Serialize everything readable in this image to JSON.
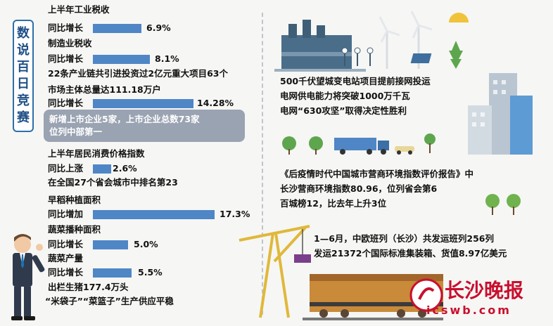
{
  "title": "数说百日竞赛",
  "left": {
    "industrial_tax": {
      "label": "上半年工业税收",
      "growth_label": "同比增长",
      "value": "6.9%",
      "fill": 0.399
    },
    "manufacturing_tax": {
      "label": "制造业税收",
      "growth_label": "同比增长",
      "value": "8.1%",
      "fill": 0.468
    },
    "industry_chain": "22条产业链共引进投资过2亿元重大项目63个",
    "market_entities": {
      "label": "市场主体总量达111.18万户",
      "growth_label": "同比增长",
      "value": "14.28%",
      "fill": 0.825
    },
    "listed_companies": {
      "line1": "新增上市企业5家，上市企业总数73家",
      "line2": "位列中部第一"
    },
    "cpi": {
      "label": "上半年居民消费价格指数",
      "growth_label": "同比上涨",
      "value": "2.6%",
      "fill": 0.15,
      "rank": "在全国27个省会城市中排名第23"
    },
    "rice_area": {
      "label": "早稻种植面积",
      "growth_label": "同比增加",
      "value": "17.3%",
      "fill": 1.0
    },
    "vegetable_area": {
      "label": "蔬菜播种面积",
      "growth_label": "同比增长",
      "value": "5.0%",
      "fill": 0.289
    },
    "vegetable_output": {
      "label": "蔬菜产量",
      "growth_label": "同比增长",
      "value": "5.5%",
      "fill": 0.318
    },
    "pigs": "出栏生猪177.4万头",
    "supply": "“米袋子”“菜篮子”生产供应平稳"
  },
  "right": {
    "power": {
      "line1": "500千伏望城变电站项目提前接网投运",
      "line2": "电网供电能力将突破1000万千瓦",
      "line3": "电网“630攻坚”取得决定性胜利"
    },
    "business_env": {
      "line1": "《后疫情时代中国城市营商环境指数评价报告》中",
      "line2": "长沙营商环境指数80.96，位列省会第6",
      "line3": "百城榜12，比去年上升3位"
    },
    "rail": {
      "line1": "1—6月，中欧班列（长沙）共发运班列256列",
      "line2": "发运21372个国际标准集装箱、货值8.97亿美元"
    }
  },
  "logo": {
    "name": "长沙晚报",
    "url": "icswb.com"
  },
  "colors": {
    "bar": "#4f86c6",
    "accent": "#2e6fa8",
    "logo": "#c8102e"
  }
}
